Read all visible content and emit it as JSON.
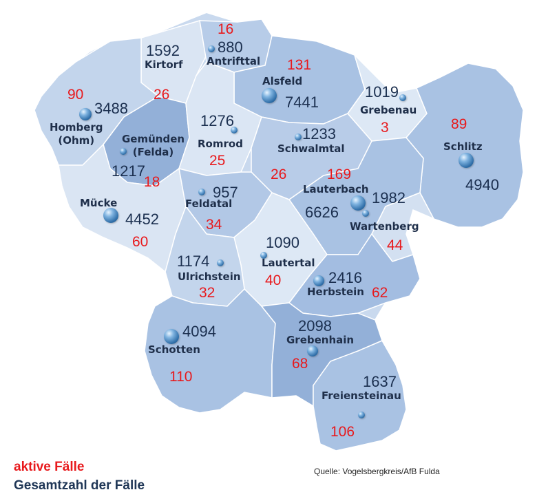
{
  "colors": {
    "active": "#e8191c",
    "total": "#1b2f4f",
    "region_light": "#c9d9ee",
    "region_mid": "#a9c2e3",
    "region_dark": "#93b0d8"
  },
  "legend": {
    "active_label": "aktive Fälle",
    "total_label": "Gesamtzahl der Fälle"
  },
  "source": "Quelle: Vogelsbergkreis/AfB Fulda",
  "municipalities": [
    {
      "id": "antrifttal",
      "name": "Antrifttal",
      "total": "880",
      "active": "16"
    },
    {
      "id": "kirtorf",
      "name": "Kirtorf",
      "total": "1592",
      "active": "26"
    },
    {
      "id": "alsfeld",
      "name": "Alsfeld",
      "total": "7441",
      "active": "131"
    },
    {
      "id": "grebenau",
      "name": "Grebenau",
      "total": "1019",
      "active": "3"
    },
    {
      "id": "homberg",
      "name": "Homberg\n(Ohm)",
      "total": "3488",
      "active": "90"
    },
    {
      "id": "gemuenden",
      "name": "Gemünden\n(Felda)",
      "total": "1217",
      "active": "18"
    },
    {
      "id": "romrod",
      "name": "Romrod",
      "total": "1276",
      "active": "25"
    },
    {
      "id": "schwalmtal",
      "name": "Schwalmtal",
      "total": "1233",
      "active": "26"
    },
    {
      "id": "schlitz",
      "name": "Schlitz",
      "total": "4940",
      "active": "89"
    },
    {
      "id": "lauterbach",
      "name": "Lauterbach",
      "total": "6626",
      "active": "169"
    },
    {
      "id": "wartenberg",
      "name": "Wartenberg",
      "total": "1982",
      "active": "44"
    },
    {
      "id": "muecke",
      "name": "Mücke",
      "total": "4452",
      "active": "60"
    },
    {
      "id": "feldatal",
      "name": "Feldatal",
      "total": "957",
      "active": "34"
    },
    {
      "id": "lautertal",
      "name": "Lautertal",
      "total": "1090",
      "active": "40"
    },
    {
      "id": "ulrichstein",
      "name": "Ulrichstein",
      "total": "1174",
      "active": "32"
    },
    {
      "id": "herbstein",
      "name": "Herbstein",
      "total": "2416",
      "active": "62"
    },
    {
      "id": "schotten",
      "name": "Schotten",
      "total": "4094",
      "active": "110"
    },
    {
      "id": "grebenhain",
      "name": "Grebenhain",
      "total": "2098",
      "active": "68"
    },
    {
      "id": "freiensteinau",
      "name": "Freiensteinau",
      "total": "1637",
      "active": "106"
    }
  ]
}
